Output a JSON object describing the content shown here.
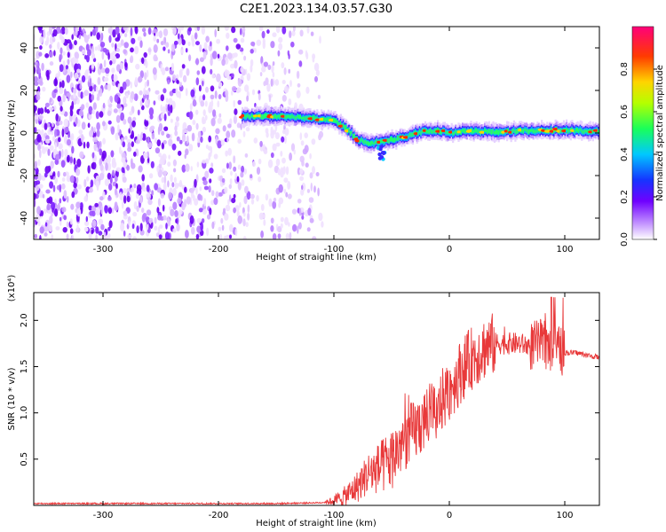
{
  "title": "C2E1.2023.134.03.57.G30",
  "chart_data": [
    {
      "type": "heatmap",
      "xlabel": "Height of straight line (km)",
      "ylabel": "Frequency (Hz)",
      "xlim": [
        -360,
        130
      ],
      "ylim": [
        -50,
        50
      ],
      "x_ticks": [
        -300,
        -200,
        -100,
        0,
        100
      ],
      "y_ticks": [
        -40,
        -20,
        0,
        20,
        40
      ],
      "colorbar": {
        "label": "Normalized spectral amplitude",
        "ticks": [
          "0.0",
          "0.2",
          "0.4",
          "0.6",
          "0.8"
        ],
        "range": [
          0,
          1
        ]
      },
      "noise_region_x": [
        -360,
        -110
      ],
      "ridge": {
        "x": [
          -180,
          -160,
          -140,
          -120,
          -100,
          -90,
          -80,
          -70,
          -60,
          -50,
          -40,
          -30,
          -20,
          -10,
          0,
          20,
          40,
          60,
          80,
          100,
          110,
          130
        ],
        "freq": [
          8,
          8,
          7.5,
          7,
          6,
          2,
          -3,
          -5,
          -4,
          -3,
          -2,
          0,
          1,
          1,
          0,
          1,
          0.5,
          1,
          1,
          1.5,
          1,
          1
        ]
      }
    },
    {
      "type": "line",
      "xlabel": "Height of straight line (km)",
      "ylabel": "SNR (10 * v/v)",
      "y_multiplier": "(x10⁴)",
      "xlim": [
        -360,
        130
      ],
      "ylim": [
        0,
        2.3
      ],
      "x_ticks": [
        -300,
        -200,
        -100,
        0,
        100
      ],
      "y_ticks": [
        0.5,
        1.0,
        1.5,
        2.0
      ],
      "series": [
        {
          "color": "#e8393a",
          "x": [
            -360,
            -250,
            -150,
            -110,
            -100,
            -90,
            -80,
            -70,
            -60,
            -50,
            -40,
            -30,
            -20,
            -10,
            0,
            10,
            20,
            30,
            40,
            50,
            60,
            70,
            80,
            90,
            100,
            110,
            120,
            130
          ],
          "y": [
            0.02,
            0.02,
            0.02,
            0.03,
            0.05,
            0.1,
            0.2,
            0.35,
            0.4,
            0.5,
            0.7,
            0.8,
            0.95,
            1.05,
            1.25,
            1.45,
            1.6,
            1.7,
            1.75,
            1.75,
            1.75,
            1.72,
            1.75,
            1.7,
            1.65,
            1.65,
            1.62,
            1.6
          ]
        }
      ]
    }
  ]
}
